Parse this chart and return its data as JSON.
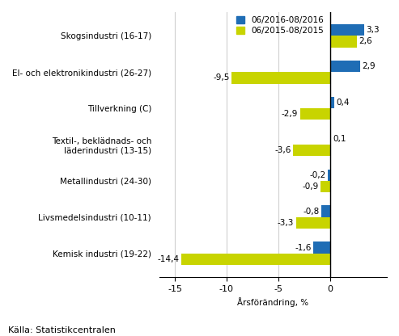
{
  "categories": [
    "Kemisk industri (19-22)",
    "Livsmedelsindustri (10-11)",
    "Metallindustri (24-30)",
    "Textil-, beklädnads- och\nläderindustri (13-15)",
    "Tillverkning (C)",
    "El- och elektronikindustri (26-27)",
    "Skogsindustri (16-17)"
  ],
  "series_2016": [
    -1.6,
    -0.8,
    -0.2,
    0.1,
    0.4,
    2.9,
    3.3
  ],
  "series_2015": [
    -14.4,
    -3.3,
    -0.9,
    -3.6,
    -2.9,
    -9.5,
    2.6
  ],
  "color_2016": "#1f6db5",
  "color_2015": "#c8d400",
  "legend_2016": "06/2016-08/2016",
  "legend_2015": "06/2015-08/2015",
  "xlabel": "Årsförändring, %",
  "xlim": [
    -16.5,
    5.5
  ],
  "xticks": [
    -15,
    -10,
    -5,
    0
  ],
  "source": "Källa: Statistikcentralen",
  "background_color": "#ffffff",
  "bar_height": 0.32,
  "label_fontsize": 7.5,
  "tick_fontsize": 8,
  "source_fontsize": 8
}
